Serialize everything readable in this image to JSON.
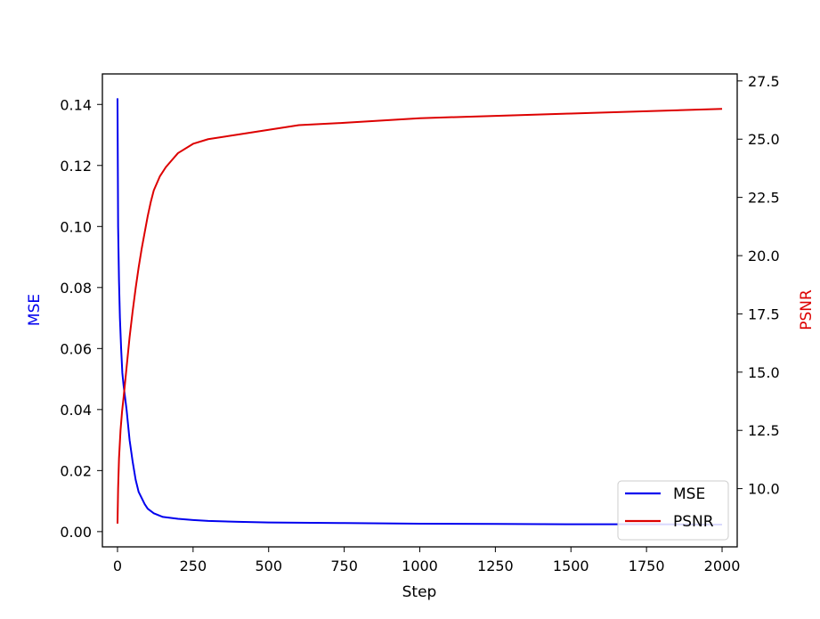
{
  "chart_data": {
    "type": "line",
    "title": "",
    "xlabel": "Step",
    "ylabel_left": "MSE",
    "ylabel_right": "PSNR",
    "xlim": [
      -50,
      2050
    ],
    "ylim_left": [
      -0.005,
      0.15
    ],
    "ylim_right": [
      7.5,
      27.8
    ],
    "x_ticks": [
      0,
      250,
      500,
      750,
      1000,
      1250,
      1500,
      1750,
      2000
    ],
    "x_tick_labels": [
      "0",
      "250",
      "500",
      "750",
      "1000",
      "1250",
      "1500",
      "1750",
      "2000"
    ],
    "y_left_ticks": [
      0.0,
      0.02,
      0.04,
      0.06,
      0.08,
      0.1,
      0.12,
      0.14
    ],
    "y_left_tick_labels": [
      "0.00",
      "0.02",
      "0.04",
      "0.06",
      "0.08",
      "0.10",
      "0.12",
      "0.14"
    ],
    "y_right_ticks": [
      10.0,
      12.5,
      15.0,
      17.5,
      20.0,
      22.5,
      25.0,
      27.5
    ],
    "y_right_tick_labels": [
      "10.0",
      "12.5",
      "15.0",
      "17.5",
      "20.0",
      "22.5",
      "25.0",
      "27.5"
    ],
    "legend_placement": "lower-right",
    "grid": false,
    "series": [
      {
        "name": "MSE",
        "axis": "left",
        "color": "#0000ee",
        "x": [
          0,
          2,
          5,
          8,
          12,
          16,
          20,
          25,
          30,
          35,
          40,
          50,
          60,
          70,
          80,
          90,
          100,
          120,
          150,
          200,
          250,
          300,
          400,
          500,
          750,
          1000,
          1250,
          1500,
          1750,
          2000
        ],
        "y": [
          0.142,
          0.1,
          0.082,
          0.07,
          0.06,
          0.052,
          0.048,
          0.044,
          0.04,
          0.035,
          0.03,
          0.023,
          0.017,
          0.013,
          0.011,
          0.009,
          0.0075,
          0.006,
          0.0048,
          0.0042,
          0.0038,
          0.0035,
          0.0032,
          0.003,
          0.0028,
          0.0026,
          0.0025,
          0.0024,
          0.0024,
          0.0023
        ]
      },
      {
        "name": "PSNR",
        "axis": "right",
        "color": "#dd0000",
        "x": [
          0,
          2,
          5,
          10,
          15,
          20,
          30,
          40,
          50,
          60,
          70,
          80,
          90,
          100,
          110,
          120,
          140,
          160,
          180,
          200,
          250,
          300,
          400,
          500,
          600,
          750,
          1000,
          1250,
          1500,
          1750,
          2000
        ],
        "y": [
          8.5,
          10.0,
          11.3,
          12.5,
          13.3,
          13.9,
          15.2,
          16.5,
          17.6,
          18.6,
          19.5,
          20.3,
          21.0,
          21.7,
          22.3,
          22.8,
          23.4,
          23.8,
          24.1,
          24.4,
          24.8,
          25.0,
          25.2,
          25.4,
          25.6,
          25.7,
          25.9,
          26.0,
          26.1,
          26.2,
          26.3
        ]
      }
    ]
  }
}
